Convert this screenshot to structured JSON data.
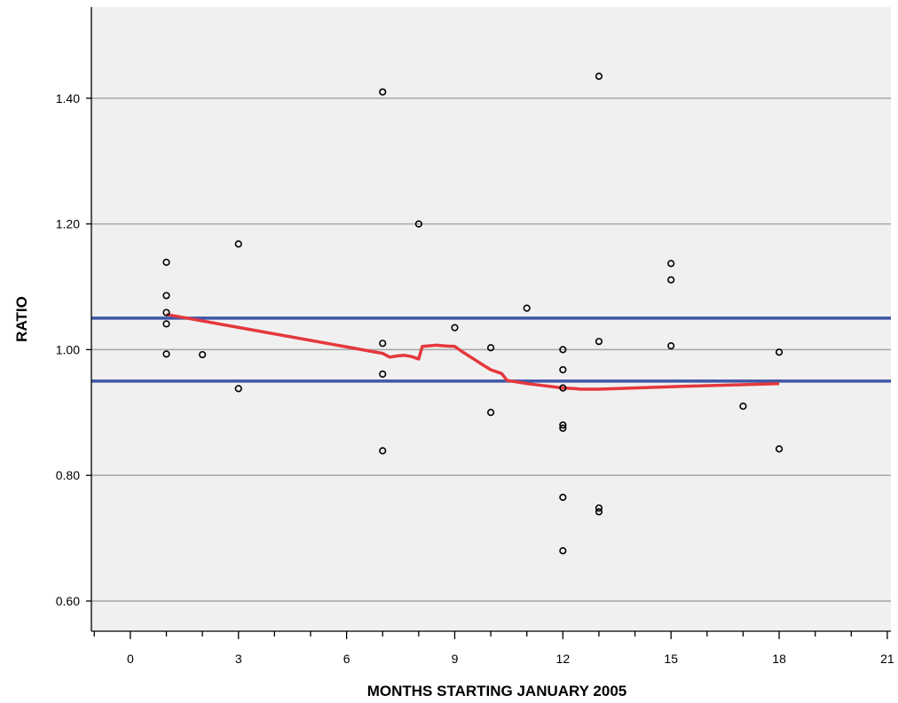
{
  "chart_data": {
    "type": "scatter",
    "xlabel": "MONTHS STARTING JANUARY 2005",
    "ylabel": "RATIO",
    "xlim": [
      -1.08,
      21.1
    ],
    "ylim": [
      0.552,
      1.545
    ],
    "x_ticks": [
      0,
      3,
      6,
      9,
      12,
      15,
      18,
      21
    ],
    "x_tick_labels": [
      "0",
      "3",
      "6",
      "9",
      "12",
      "15",
      "18",
      "21"
    ],
    "x_minor_tick_step": 1,
    "y_ticks": [
      0.6,
      0.8,
      1.0,
      1.2,
      1.4
    ],
    "y_tick_labels": [
      "0.60",
      "0.80",
      "1.00",
      "1.20",
      "1.40"
    ],
    "grid": {
      "horizontal": true,
      "vertical": false
    },
    "points": [
      [
        1,
        1.139
      ],
      [
        1,
        1.086
      ],
      [
        1,
        1.059
      ],
      [
        1,
        1.041
      ],
      [
        1,
        0.993
      ],
      [
        2,
        0.992
      ],
      [
        3,
        1.168
      ],
      [
        3,
        0.938
      ],
      [
        7,
        1.41
      ],
      [
        7,
        1.01
      ],
      [
        7,
        0.961
      ],
      [
        7,
        0.839
      ],
      [
        8,
        1.2
      ],
      [
        9,
        1.035
      ],
      [
        10,
        1.003
      ],
      [
        10,
        0.9
      ],
      [
        11,
        1.066
      ],
      [
        12,
        1.0
      ],
      [
        12,
        0.968
      ],
      [
        12,
        0.939
      ],
      [
        12,
        0.88
      ],
      [
        12,
        0.875
      ],
      [
        12,
        0.765
      ],
      [
        12,
        0.68
      ],
      [
        13,
        1.435
      ],
      [
        13,
        1.013
      ],
      [
        13,
        0.748
      ],
      [
        13,
        0.742
      ],
      [
        15,
        1.137
      ],
      [
        15,
        1.111
      ],
      [
        15,
        1.006
      ],
      [
        17,
        0.91
      ],
      [
        18,
        0.996
      ],
      [
        18,
        0.842
      ]
    ],
    "reference_lines": [
      1.05,
      0.95
    ],
    "fit_line": [
      [
        1.0,
        1.056
      ],
      [
        7.0,
        0.994
      ],
      [
        7.2,
        0.988
      ],
      [
        7.4,
        0.99
      ],
      [
        7.6,
        0.991
      ],
      [
        7.8,
        0.989
      ],
      [
        8.0,
        0.985
      ],
      [
        8.1,
        1.005
      ],
      [
        8.5,
        1.007
      ],
      [
        8.7,
        1.006
      ],
      [
        9.0,
        1.005
      ],
      [
        9.2,
        0.997
      ],
      [
        9.5,
        0.986
      ],
      [
        9.8,
        0.975
      ],
      [
        10.0,
        0.968
      ],
      [
        10.3,
        0.962
      ],
      [
        10.45,
        0.951
      ],
      [
        11.0,
        0.946
      ],
      [
        12.0,
        0.939
      ],
      [
        12.3,
        0.938
      ],
      [
        12.5,
        0.937
      ],
      [
        13.0,
        0.937
      ],
      [
        15.0,
        0.941
      ],
      [
        18.0,
        0.946
      ]
    ],
    "colors": {
      "plot_background": "#f0f0f0",
      "gridline": "#a6a6a6",
      "reference_line": "#3e57a7",
      "fit_line": "#e4383d",
      "point": "#000000",
      "axis": "#000000"
    }
  }
}
